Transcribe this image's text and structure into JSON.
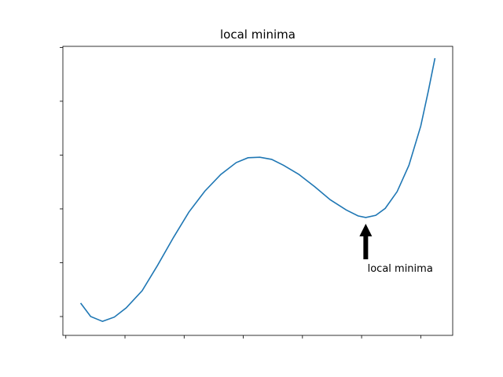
{
  "chart_data": {
    "type": "line",
    "title": "local minima",
    "x": [
      -2.75,
      -2.58,
      -2.38,
      -2.18,
      -1.98,
      -1.71,
      -1.45,
      -1.18,
      -0.92,
      -0.65,
      -0.38,
      -0.12,
      0.08,
      0.28,
      0.48,
      0.68,
      0.94,
      1.21,
      1.47,
      1.74,
      1.94,
      2.07,
      2.24,
      2.4,
      2.6,
      2.8,
      3.0,
      3.13,
      3.24
    ],
    "values": [
      0.25,
      0.0,
      -0.09,
      -0.01,
      0.16,
      0.48,
      0.95,
      1.47,
      1.94,
      2.33,
      2.64,
      2.86,
      2.95,
      2.96,
      2.92,
      2.81,
      2.64,
      2.41,
      2.17,
      1.98,
      1.87,
      1.84,
      1.88,
      2.01,
      2.32,
      2.81,
      3.54,
      4.2,
      4.8
    ],
    "color": "#1f77b4",
    "xlim": [
      -3.05,
      3.54
    ],
    "ylim": [
      -0.35,
      5.02
    ],
    "xticks": [
      -3,
      -2,
      -1,
      0,
      1,
      2,
      3
    ],
    "yticks": [
      0,
      1,
      2,
      3,
      4,
      5
    ],
    "tick_labels": false,
    "annotation": {
      "text": "local minima",
      "xy": [
        2.07,
        1.84
      ],
      "xytext": [
        2.1,
        0.83
      ]
    }
  }
}
